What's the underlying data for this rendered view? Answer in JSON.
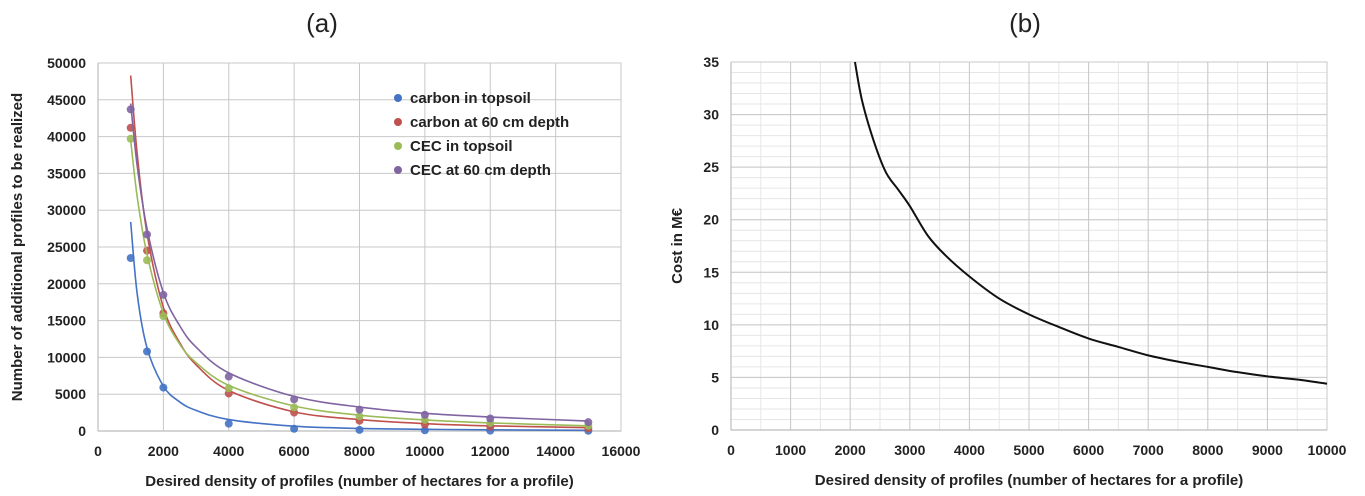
{
  "chart_data": [
    {
      "panel_label": "(a)",
      "type": "scatter",
      "xlabel": "Desired density of profiles (number of hectares for a profile)",
      "ylabel": "Number of additional profiles to be realized",
      "xlim": [
        0,
        16000
      ],
      "ylim": [
        0,
        50000
      ],
      "xticks": [
        "0",
        "2000",
        "4000",
        "6000",
        "8000",
        "10000",
        "12000",
        "14000",
        "16000"
      ],
      "yticks": [
        "0",
        "5000",
        "10000",
        "15000",
        "20000",
        "25000",
        "30000",
        "35000",
        "40000",
        "45000",
        "50000"
      ],
      "grid": true,
      "legend_position": "top-right",
      "series": [
        {
          "name": "carbon in topsoil",
          "color": "#4472c4",
          "x": [
            1000,
            1500,
            2000,
            4000,
            6000,
            8000,
            10000,
            12000,
            15000
          ],
          "values": [
            23500,
            10800,
            5900,
            1000,
            300,
            150,
            100,
            50,
            30
          ],
          "trend": [
            [
              1000,
              28400
            ],
            [
              1200,
              18600
            ],
            [
              1500,
              11300
            ],
            [
              2000,
              6100
            ],
            [
              2500,
              3950
            ],
            [
              3000,
              2800
            ],
            [
              4000,
              1550
            ],
            [
              6000,
              650
            ],
            [
              8000,
              350
            ],
            [
              10000,
              230
            ],
            [
              12000,
              160
            ],
            [
              15000,
              100
            ]
          ]
        },
        {
          "name": "carbon at 60 cm depth",
          "color": "#c0504d",
          "x": [
            1000,
            1500,
            2000,
            4000,
            6000,
            8000,
            10000,
            12000,
            15000
          ],
          "values": [
            41200,
            24500,
            16000,
            5100,
            2500,
            1400,
            900,
            600,
            350
          ],
          "trend": [
            [
              1000,
              48300
            ],
            [
              1200,
              37600
            ],
            [
              1500,
              26800
            ],
            [
              2000,
              16800
            ],
            [
              2500,
              12000
            ],
            [
              3000,
              9000
            ],
            [
              4000,
              5500
            ],
            [
              6000,
              2600
            ],
            [
              8000,
              1550
            ],
            [
              10000,
              1000
            ],
            [
              12000,
              700
            ],
            [
              15000,
              450
            ]
          ]
        },
        {
          "name": "CEC in topsoil",
          "color": "#9bbb59",
          "x": [
            1000,
            1500,
            2000,
            4000,
            6000,
            8000,
            10000,
            12000,
            15000
          ],
          "values": [
            39700,
            23200,
            15600,
            5800,
            3200,
            2000,
            1500,
            1100,
            700
          ],
          "trend": [
            [
              1000,
              39500
            ],
            [
              1200,
              31800
            ],
            [
              1500,
              24000
            ],
            [
              2000,
              16000
            ],
            [
              2500,
              11800
            ],
            [
              3000,
              9300
            ],
            [
              4000,
              6200
            ],
            [
              6000,
              3400
            ],
            [
              8000,
              2150
            ],
            [
              10000,
              1500
            ],
            [
              12000,
              1100
            ],
            [
              15000,
              700
            ]
          ]
        },
        {
          "name": "CEC at 60 cm depth",
          "color": "#8064a2",
          "x": [
            1000,
            1500,
            2000,
            4000,
            6000,
            8000,
            10000,
            12000,
            15000
          ],
          "values": [
            43700,
            26700,
            18500,
            7400,
            4300,
            2900,
            2200,
            1700,
            1200
          ],
          "trend": [
            [
              1000,
              44500
            ],
            [
              1200,
              36000
            ],
            [
              1500,
              27500
            ],
            [
              2000,
              18800
            ],
            [
              2500,
              14300
            ],
            [
              3000,
              11400
            ],
            [
              4000,
              7900
            ],
            [
              6000,
              4700
            ],
            [
              8000,
              3250
            ],
            [
              10000,
              2400
            ],
            [
              12000,
              1900
            ],
            [
              15000,
              1350
            ]
          ]
        }
      ]
    },
    {
      "panel_label": "(b)",
      "type": "line",
      "xlabel": "Desired density of profiles (number of hectares for a profile)",
      "ylabel": "Cost in M€",
      "xlim": [
        0,
        10000
      ],
      "ylim": [
        0,
        35
      ],
      "xticks": [
        "0",
        "1000",
        "2000",
        "3000",
        "4000",
        "5000",
        "6000",
        "7000",
        "8000",
        "9000",
        "10000"
      ],
      "yticks": [
        "0",
        "5",
        "10",
        "15",
        "20",
        "25",
        "30",
        "35"
      ],
      "grid": true,
      "series": [
        {
          "color": "#111111",
          "x": [
            2080,
            2200,
            2400,
            2600,
            2800,
            3000,
            3300,
            3600,
            4000,
            4500,
            5000,
            5500,
            6000,
            6500,
            7000,
            7500,
            8000,
            8500,
            9000,
            9500,
            10000
          ],
          "values": [
            35.0,
            31.3,
            27.4,
            24.5,
            22.9,
            21.3,
            18.5,
            16.6,
            14.6,
            12.5,
            11.0,
            9.8,
            8.7,
            7.9,
            7.1,
            6.5,
            6.0,
            5.5,
            5.1,
            4.8,
            4.4
          ]
        }
      ]
    }
  ]
}
